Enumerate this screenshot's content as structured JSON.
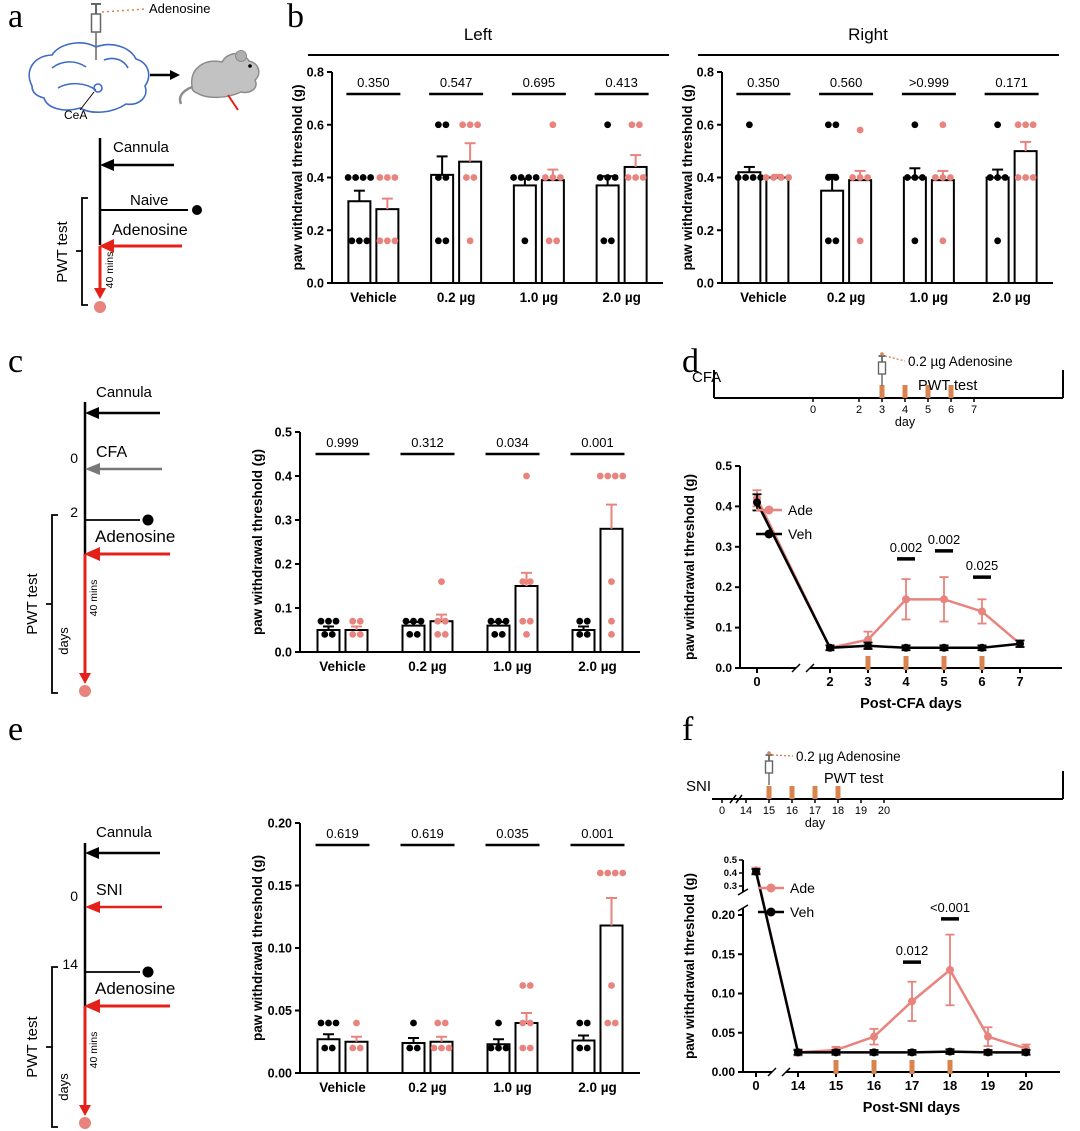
{
  "colors": {
    "ade": "#E8837E",
    "veh": "#000000",
    "injection_marker": "#D9834F",
    "red_arrow": "#E32119",
    "gray_arrow": "#787878",
    "brain": "#3E6BC4"
  },
  "panels": {
    "a": "a",
    "b": "b",
    "c": "c",
    "d": "d",
    "e": "e",
    "f": "f"
  },
  "panel_a": {
    "syringe_label": "Adenosine",
    "brain_region": "CeA",
    "timeline": {
      "cannula": "Cannula",
      "naive": "Naive",
      "adenosine": "Adenosine",
      "pwt": "PWT test",
      "duration": "40 mins"
    }
  },
  "panel_c_timeline": {
    "cannula": "Cannula",
    "day0": "0",
    "event0": "CFA",
    "day2": "2",
    "adenosine": "Adenosine",
    "pwt": "PWT test",
    "duration": "40 mins",
    "axis_unit": "days"
  },
  "panel_e_timeline": {
    "cannula": "Cannula",
    "day0": "0",
    "event0": "SNI",
    "day14": "14",
    "adenosine": "Adenosine",
    "pwt": "PWT test",
    "duration": "40 mins",
    "axis_unit": "days"
  },
  "chart_data": [
    {
      "id": "b-left",
      "type": "bar",
      "title": "Left",
      "ylabel": "paw withdrawal threshold (g)",
      "ylim": [
        0,
        0.8
      ],
      "yticks": [
        "0.0",
        "0.2",
        "0.4",
        "0.6",
        "0.8"
      ],
      "categories": [
        "Vehicle",
        "0.2 µg",
        "1.0 µg",
        "2.0 µg"
      ],
      "pvalues": [
        "0.350",
        "0.547",
        "0.695",
        "0.413"
      ],
      "series": [
        {
          "name": "Veh",
          "color": "#000000",
          "values": [
            0.31,
            0.41,
            0.37,
            0.37
          ],
          "errors": [
            0.04,
            0.07,
            0.025,
            0.035
          ],
          "dots": [
            [
              0.4,
              0.4,
              0.4,
              0.4,
              0.16,
              0.16,
              0.16
            ],
            [
              0.6,
              0.6,
              0.4,
              0.4,
              0.16,
              0.16
            ],
            [
              0.4,
              0.4,
              0.4,
              0.4,
              0.16
            ],
            [
              0.6,
              0.4,
              0.4,
              0.4,
              0.16,
              0.16
            ]
          ]
        },
        {
          "name": "Ade",
          "color": "#E8837E",
          "values": [
            0.28,
            0.46,
            0.39,
            0.44
          ],
          "errors": [
            0.04,
            0.07,
            0.04,
            0.045
          ],
          "dots": [
            [
              0.4,
              0.4,
              0.4,
              0.16,
              0.16,
              0.16
            ],
            [
              0.6,
              0.6,
              0.6,
              0.4,
              0.4,
              0.16
            ],
            [
              0.6,
              0.4,
              0.4,
              0.4,
              0.16,
              0.16
            ],
            [
              0.6,
              0.6,
              0.4,
              0.4,
              0.4
            ]
          ]
        }
      ]
    },
    {
      "id": "b-right",
      "type": "bar",
      "title": "Right",
      "ylabel": "paw withdrawal threshold (g)",
      "ylim": [
        0,
        0.8
      ],
      "yticks": [
        "0.0",
        "0.2",
        "0.4",
        "0.6",
        "0.8"
      ],
      "categories": [
        "Vehicle",
        "0.2 µg",
        "1.0 µg",
        "2.0 µg"
      ],
      "pvalues": [
        "0.350",
        "0.560",
        ">0.999",
        "0.171"
      ],
      "series": [
        {
          "name": "Veh",
          "color": "#000000",
          "values": [
            0.42,
            0.35,
            0.4,
            0.4
          ],
          "errors": [
            0.02,
            0.06,
            0.035,
            0.03
          ],
          "dots": [
            [
              0.6,
              0.4,
              0.4,
              0.4,
              0.4
            ],
            [
              0.6,
              0.6,
              0.4,
              0.4,
              0.16,
              0.16
            ],
            [
              0.6,
              0.4,
              0.4,
              0.4,
              0.16
            ],
            [
              0.6,
              0.4,
              0.4,
              0.4,
              0.16
            ]
          ]
        },
        {
          "name": "Ade",
          "color": "#E8837E",
          "values": [
            0.4,
            0.39,
            0.39,
            0.5
          ],
          "errors": [
            0.01,
            0.035,
            0.035,
            0.035
          ],
          "dots": [
            [
              0.4,
              0.4,
              0.4,
              0.4
            ],
            [
              0.58,
              0.4,
              0.4,
              0.4,
              0.16
            ],
            [
              0.6,
              0.4,
              0.4,
              0.4,
              0.16
            ],
            [
              0.6,
              0.6,
              0.6,
              0.4,
              0.4,
              0.4
            ]
          ]
        }
      ]
    },
    {
      "id": "c-bar",
      "type": "bar",
      "title": "",
      "ylabel": "paw withdrawal threshold (g)",
      "ylim": [
        0,
        0.5
      ],
      "yticks": [
        "0.0",
        "0.1",
        "0.2",
        "0.3",
        "0.4",
        "0.5"
      ],
      "categories": [
        "Vehicle",
        "0.2 µg",
        "1.0 µg",
        "2.0 µg"
      ],
      "pvalues": [
        "0.999",
        "0.312",
        "0.034",
        "0.001"
      ],
      "series": [
        {
          "name": "Veh",
          "color": "#000000",
          "values": [
            0.05,
            0.06,
            0.06,
            0.05
          ],
          "errors": [
            0.008,
            0.008,
            0.008,
            0.008
          ],
          "dots": [
            [
              0.07,
              0.07,
              0.07,
              0.04,
              0.04
            ],
            [
              0.07,
              0.07,
              0.07,
              0.04,
              0.04
            ],
            [
              0.07,
              0.07,
              0.07,
              0.04,
              0.04
            ],
            [
              0.07,
              0.07,
              0.04,
              0.04
            ]
          ]
        },
        {
          "name": "Ade",
          "color": "#E8837E",
          "values": [
            0.05,
            0.07,
            0.15,
            0.28
          ],
          "errors": [
            0.008,
            0.015,
            0.03,
            0.055
          ],
          "dots": [
            [
              0.07,
              0.07,
              0.04,
              0.04
            ],
            [
              0.16,
              0.07,
              0.07,
              0.04,
              0.04
            ],
            [
              0.4,
              0.16,
              0.16,
              0.07,
              0.07,
              0.04
            ],
            [
              0.4,
              0.4,
              0.4,
              0.4,
              0.16,
              0.07,
              0.04
            ]
          ]
        }
      ]
    },
    {
      "id": "d-line",
      "type": "line",
      "ylabel": "paw withdrawal threshold (g)",
      "xlabel": "Post-CFA days",
      "ylim": [
        0,
        0.5
      ],
      "yticks": [
        "0.0",
        "0.1",
        "0.2",
        "0.3",
        "0.4",
        "0.5"
      ],
      "x": [
        0,
        2,
        3,
        4,
        5,
        6,
        7
      ],
      "x_break_after_first": true,
      "series": [
        {
          "name": "Ade",
          "color": "#E8837E",
          "values": [
            0.42,
            0.05,
            0.07,
            0.17,
            0.17,
            0.14,
            0.06
          ],
          "errors": [
            0.02,
            0.006,
            0.02,
            0.05,
            0.055,
            0.03,
            0.008
          ]
        },
        {
          "name": "Veh",
          "color": "#000000",
          "values": [
            0.41,
            0.05,
            0.055,
            0.05,
            0.05,
            0.05,
            0.06
          ],
          "errors": [
            0.02,
            0.006,
            0.008,
            0.006,
            0.006,
            0.006,
            0.008
          ]
        }
      ],
      "annotations": [
        {
          "x": 4,
          "y": 0.27,
          "text": "0.002"
        },
        {
          "x": 5,
          "y": 0.29,
          "text": "0.002"
        },
        {
          "x": 6,
          "y": 0.225,
          "text": "0.025"
        }
      ],
      "injection_days": [
        3,
        4,
        5,
        6
      ],
      "legend": [
        "Ade",
        "Veh"
      ],
      "inset": {
        "label": "CFA",
        "days": [
          "0",
          "2",
          "3",
          "4",
          "5",
          "6",
          "7"
        ],
        "day_values": [
          0,
          2,
          3,
          4,
          5,
          6,
          7
        ],
        "day_label": "day",
        "syringe_label": "0.2 µg Adenosine",
        "pwt_label": "PWT test",
        "injection_days": [
          3,
          4,
          5,
          6
        ],
        "syringe_day": 3
      }
    },
    {
      "id": "e-bar",
      "type": "bar",
      "title": "",
      "ylabel": "paw withdrawal threshold (g)",
      "ylim": [
        0,
        0.2
      ],
      "yticks": [
        "0.00",
        "0.05",
        "0.10",
        "0.15",
        "0.20"
      ],
      "categories": [
        "Vehicle",
        "0.2 µg",
        "1.0 µg",
        "2.0 µg"
      ],
      "pvalues": [
        "0.619",
        "0.619",
        "0.035",
        "0.001"
      ],
      "series": [
        {
          "name": "Veh",
          "color": "#000000",
          "values": [
            0.027,
            0.024,
            0.023,
            0.026
          ],
          "errors": [
            0.004,
            0.004,
            0.004,
            0.004
          ],
          "dots": [
            [
              0.04,
              0.04,
              0.04,
              0.02,
              0.02
            ],
            [
              0.04,
              0.02,
              0.02
            ],
            [
              0.04,
              0.02,
              0.02,
              0.02
            ],
            [
              0.04,
              0.04,
              0.02,
              0.02
            ]
          ]
        },
        {
          "name": "Ade",
          "color": "#E8837E",
          "values": [
            0.025,
            0.025,
            0.04,
            0.118
          ],
          "errors": [
            0.004,
            0.004,
            0.008,
            0.022
          ],
          "dots": [
            [
              0.04,
              0.02,
              0.02
            ],
            [
              0.04,
              0.04,
              0.02,
              0.02,
              0.02
            ],
            [
              0.07,
              0.07,
              0.04,
              0.04,
              0.02,
              0.02
            ],
            [
              0.16,
              0.16,
              0.16,
              0.16,
              0.07,
              0.04,
              0.04
            ]
          ]
        }
      ]
    },
    {
      "id": "f-line",
      "type": "line",
      "ylabel": "paw withdrawal threshold (g)",
      "xlabel": "Post-SNI days",
      "ylim": [
        0,
        0.2
      ],
      "yticks": [
        "0.00",
        "0.05",
        "0.10",
        "0.15",
        "0.20"
      ],
      "y_break_top": {
        "ticks": [
          "0.3",
          "0.4",
          "0.5"
        ],
        "values": [
          0.3,
          0.4,
          0.5
        ]
      },
      "x": [
        0,
        14,
        15,
        16,
        17,
        18,
        19,
        20
      ],
      "x_break_after_first": true,
      "series": [
        {
          "name": "Ade",
          "color": "#E8837E",
          "values": [
            0.42,
            0.025,
            0.028,
            0.045,
            0.09,
            0.13,
            0.045,
            0.03
          ],
          "errors": [
            0.02,
            0.004,
            0.004,
            0.01,
            0.025,
            0.045,
            0.012,
            0.005
          ]
        },
        {
          "name": "Veh",
          "color": "#000000",
          "values": [
            0.41,
            0.025,
            0.025,
            0.025,
            0.025,
            0.026,
            0.025,
            0.025
          ],
          "errors": [
            0.02,
            0.003,
            0.003,
            0.003,
            0.003,
            0.003,
            0.003,
            0.003
          ]
        }
      ],
      "annotations": [
        {
          "x": 17,
          "y": 0.14,
          "text": "0.012"
        },
        {
          "x": 18,
          "y": 0.195,
          "text": "<0.001"
        }
      ],
      "injection_days": [
        15,
        16,
        17,
        18
      ],
      "legend": [
        "Ade",
        "Veh"
      ],
      "inset": {
        "label": "SNI",
        "days": [
          "0",
          "14",
          "15",
          "16",
          "17",
          "18",
          "19",
          "20"
        ],
        "day_values": [
          0,
          14,
          15,
          16,
          17,
          18,
          19,
          20
        ],
        "day_label": "day",
        "syringe_label": "0.2 µg Adenosine",
        "pwt_label": "PWT test",
        "injection_days": [
          15,
          16,
          17,
          18
        ],
        "syringe_day": 15
      }
    }
  ]
}
